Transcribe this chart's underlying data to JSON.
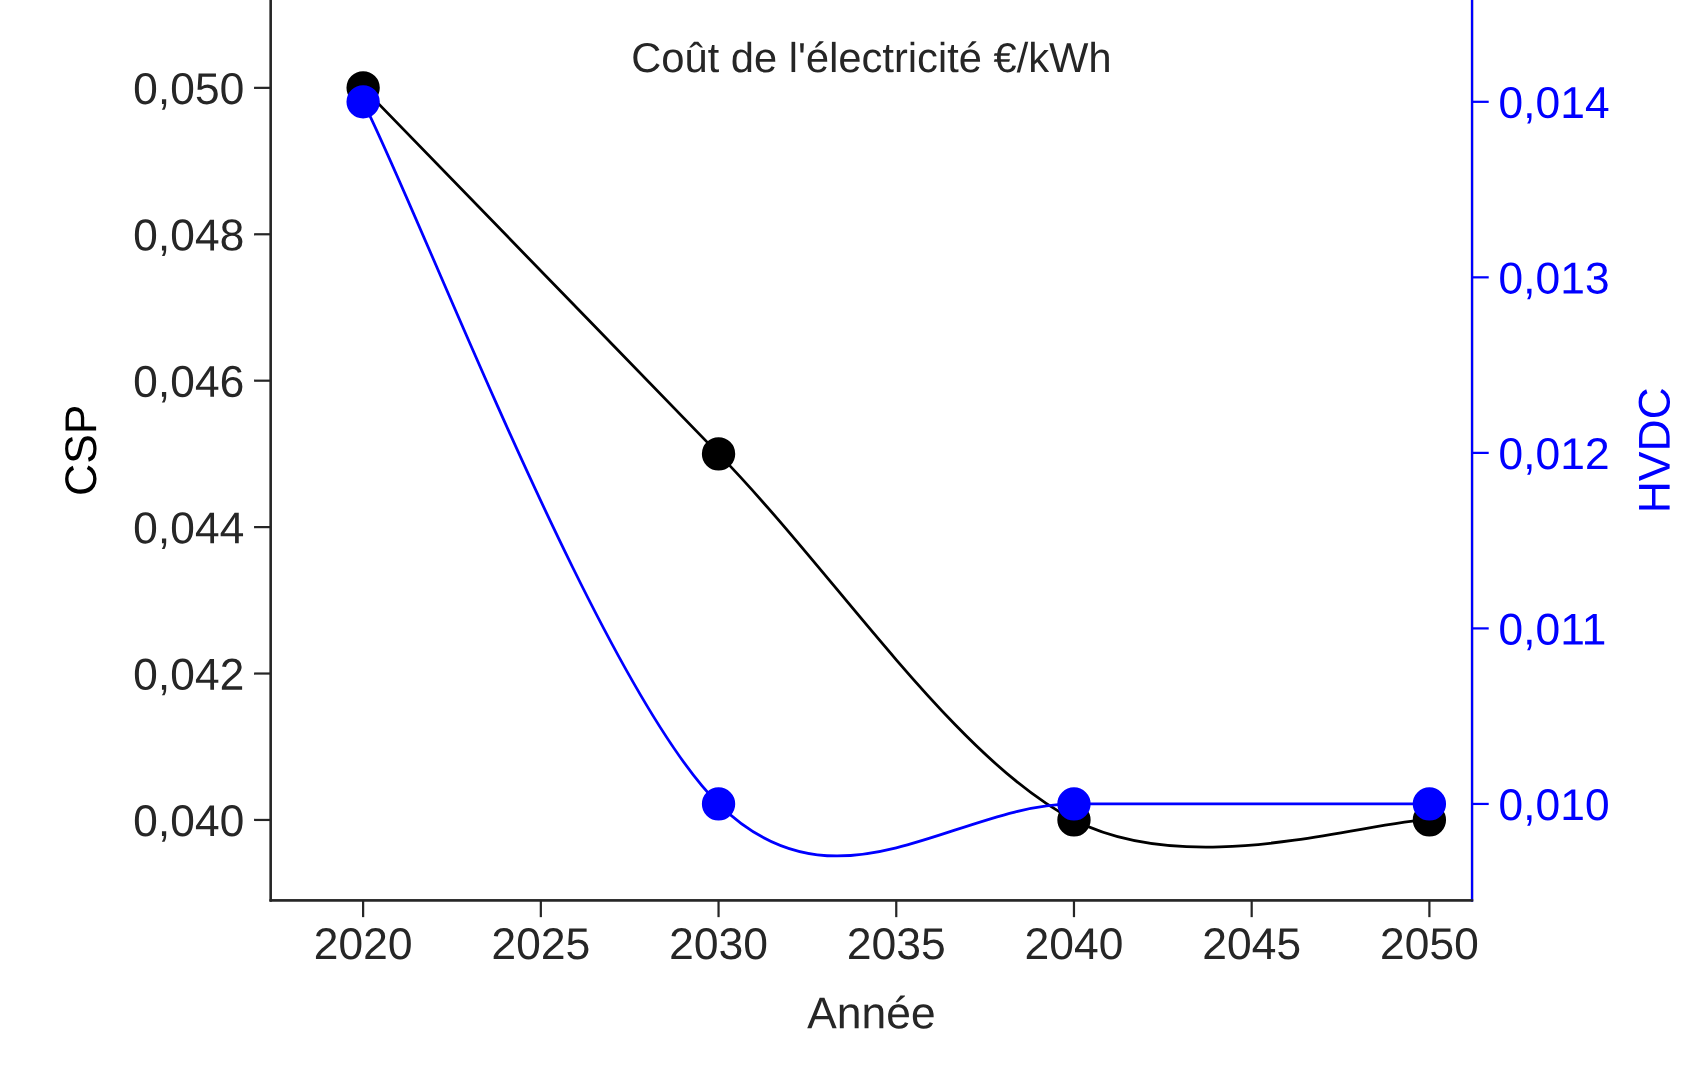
{
  "chart_data": {
    "type": "line",
    "xlabel": "Année",
    "annotations": [
      "Coût de l'électricité €/kWh"
    ],
    "x": [
      2020,
      2030,
      2040,
      2050
    ],
    "series": [
      {
        "name": "CSP",
        "color": "#000000",
        "values": [
          0.05,
          0.045,
          0.04,
          0.04
        ]
      },
      {
        "name": "HVDC",
        "color": "#0000ff",
        "axis": "y2",
        "values": [
          0.014,
          0.01,
          0.01,
          0.01
        ]
      }
    ],
    "xlim": [
      2017.4,
      2051.2
    ],
    "xticks": [
      2020,
      2025,
      2030,
      2035,
      2040,
      2045,
      2050
    ],
    "ylim": [
      0.0389,
      0.0512
    ],
    "yticks": [
      {
        "value": 0.04,
        "label": "0,040"
      },
      {
        "value": 0.042,
        "label": "0,042"
      },
      {
        "value": 0.044,
        "label": "0,044"
      },
      {
        "value": 0.046,
        "label": "0,046"
      },
      {
        "value": 0.048,
        "label": "0,048"
      },
      {
        "value": 0.05,
        "label": "0,050"
      }
    ],
    "y2lim": [
      0.00945,
      0.01458
    ],
    "y2ticks": [
      {
        "value": 0.01,
        "label": "0,010"
      },
      {
        "value": 0.011,
        "label": "0,011"
      },
      {
        "value": 0.012,
        "label": "0,012"
      },
      {
        "value": 0.013,
        "label": "0,013"
      },
      {
        "value": 0.014,
        "label": "0,014"
      }
    ],
    "marker": "circle",
    "line_style": "solid",
    "grid": false,
    "legend": false
  }
}
